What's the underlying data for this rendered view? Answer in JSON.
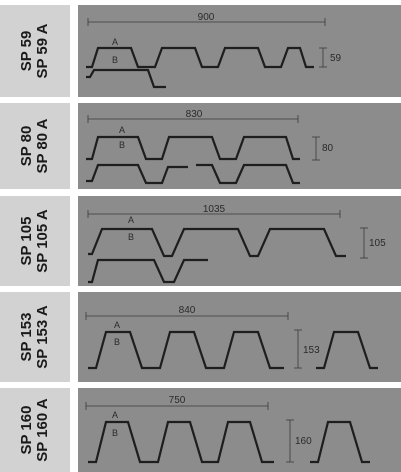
{
  "profiles": [
    {
      "line1": "SP 59",
      "line2": "SP 59 A",
      "width": "900",
      "height": "59",
      "point_a": "A",
      "point_b": "B"
    },
    {
      "line1": "SP 80",
      "line2": "SP 80 A",
      "width": "830",
      "height": "80",
      "point_a": "A",
      "point_b": "B"
    },
    {
      "line1": "SP 105",
      "line2": "SP 105 A",
      "width": "1035",
      "height": "105",
      "point_a": "A",
      "point_b": "B"
    },
    {
      "line1": "SP 153",
      "line2": "SP 153 A",
      "width": "840",
      "height": "153",
      "point_a": "A",
      "point_b": "B"
    },
    {
      "line1": "SP 160",
      "line2": "SP 160 A",
      "width": "750",
      "height": "160",
      "point_a": "A",
      "point_b": "B"
    }
  ],
  "colors": {
    "label_bg": "#d2d2d2",
    "panel_bg": "#8c8c8c",
    "line": "#1e1e1e",
    "dim": "#3a3a3a"
  }
}
